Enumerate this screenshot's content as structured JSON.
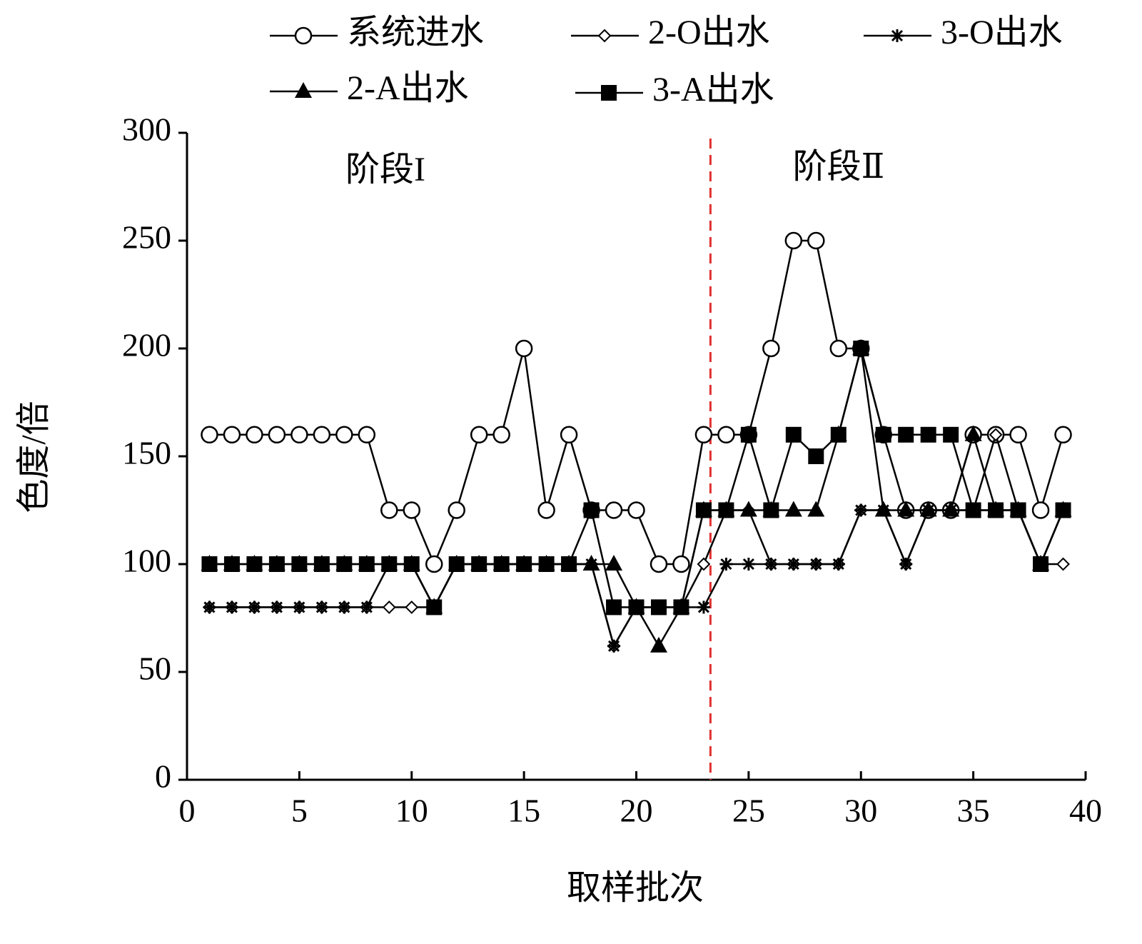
{
  "chart_data": {
    "type": "line",
    "x_label": "取样批次",
    "y_label": "色度/倍",
    "x": [
      1,
      2,
      3,
      4,
      5,
      6,
      7,
      8,
      9,
      10,
      11,
      12,
      13,
      14,
      15,
      16,
      17,
      18,
      19,
      20,
      21,
      22,
      23,
      24,
      25,
      26,
      27,
      28,
      29,
      30,
      31,
      32,
      33,
      34,
      35,
      36,
      37,
      38,
      39
    ],
    "series": [
      {
        "name": "系统进水",
        "marker": "circle",
        "color": "#000000",
        "values": [
          160,
          160,
          160,
          160,
          160,
          160,
          160,
          160,
          125,
          125,
          100,
          125,
          160,
          160,
          200,
          125,
          160,
          125,
          125,
          125,
          100,
          100,
          160,
          160,
          160,
          200,
          250,
          250,
          200,
          200,
          160,
          125,
          125,
          125,
          160,
          160,
          160,
          125,
          160
        ]
      },
      {
        "name": "2-O出水",
        "marker": "diamond",
        "color": "#000000",
        "values": [
          80,
          80,
          80,
          80,
          80,
          80,
          80,
          80,
          80,
          80,
          80,
          100,
          100,
          100,
          100,
          100,
          100,
          100,
          62,
          80,
          80,
          80,
          100,
          125,
          125,
          100,
          100,
          100,
          100,
          125,
          125,
          100,
          125,
          125,
          125,
          160,
          125,
          100,
          100
        ]
      },
      {
        "name": "3-O出水",
        "marker": "star",
        "color": "#000000",
        "values": [
          80,
          80,
          80,
          80,
          80,
          80,
          80,
          80,
          100,
          100,
          80,
          100,
          100,
          100,
          100,
          100,
          100,
          100,
          62,
          80,
          80,
          80,
          80,
          100,
          100,
          100,
          100,
          100,
          100,
          125,
          125,
          100,
          125,
          125,
          125,
          125,
          125,
          100,
          125
        ]
      },
      {
        "name": "2-A出水",
        "marker": "triangle",
        "color": "#000000",
        "values": [
          100,
          100,
          100,
          100,
          100,
          100,
          100,
          100,
          100,
          100,
          80,
          100,
          100,
          100,
          100,
          100,
          100,
          100,
          100,
          80,
          62,
          80,
          125,
          125,
          125,
          125,
          125,
          125,
          160,
          200,
          125,
          125,
          125,
          125,
          160,
          125,
          125,
          100,
          125
        ]
      },
      {
        "name": "3-A出水",
        "marker": "square",
        "color": "#000000",
        "values": [
          100,
          100,
          100,
          100,
          100,
          100,
          100,
          100,
          100,
          100,
          80,
          100,
          100,
          100,
          100,
          100,
          100,
          125,
          80,
          80,
          80,
          80,
          125,
          125,
          160,
          125,
          160,
          150,
          160,
          200,
          160,
          160,
          160,
          160,
          125,
          125,
          125,
          100,
          125
        ]
      }
    ],
    "xlim": [
      0,
      40
    ],
    "xticks": [
      0,
      5,
      10,
      15,
      20,
      25,
      30,
      35,
      40
    ],
    "ylim": [
      0,
      300
    ],
    "yticks": [
      0,
      50,
      100,
      150,
      200,
      250,
      300
    ],
    "divider_x": 23.3,
    "divider_color": "#e03030",
    "annotations": [
      "阶段I",
      "阶段Ⅱ"
    ]
  }
}
